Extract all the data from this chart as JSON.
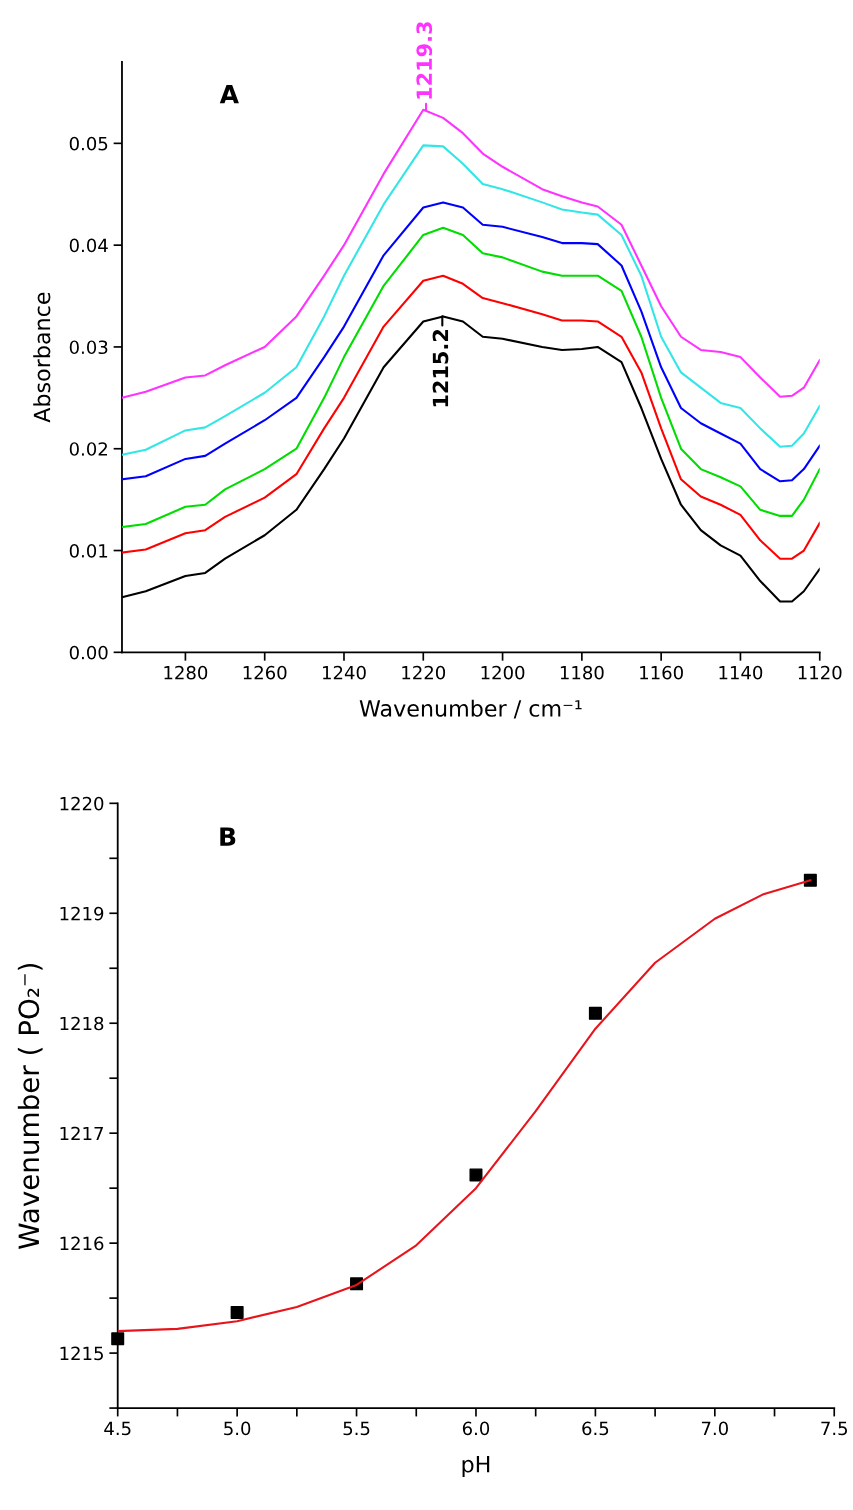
{
  "chart_data": [
    {
      "type": "line",
      "xlabel": "Wavenumber / cm⁻¹",
      "ylabel": "Absorbance",
      "x": [
        1296,
        1290,
        1280,
        1275,
        1270,
        1260,
        1252,
        1245,
        1240,
        1230,
        1220,
        1215,
        1210,
        1205,
        1200,
        1190,
        1185,
        1180,
        1176,
        1170,
        1165,
        1160,
        1155,
        1150,
        1145,
        1140,
        1135,
        1130,
        1127,
        1124,
        1120
      ],
      "series": [
        {
          "color": "#000000",
          "values": [
            0.0054,
            0.006,
            0.0075,
            0.0078,
            0.0092,
            0.0115,
            0.014,
            0.018,
            0.021,
            0.028,
            0.0325,
            0.033,
            0.0325,
            0.031,
            0.0308,
            0.03,
            0.0297,
            0.0298,
            0.03,
            0.0285,
            0.024,
            0.019,
            0.0145,
            0.012,
            0.0105,
            0.0095,
            0.007,
            0.005,
            0.005,
            0.006,
            0.0082
          ]
        },
        {
          "color": "#ff0000",
          "values": [
            0.0098,
            0.0101,
            0.0117,
            0.012,
            0.0133,
            0.0152,
            0.0175,
            0.022,
            0.025,
            0.032,
            0.0365,
            0.037,
            0.0362,
            0.0348,
            0.0343,
            0.0332,
            0.0326,
            0.0326,
            0.0325,
            0.031,
            0.0275,
            0.022,
            0.017,
            0.0153,
            0.0145,
            0.0135,
            0.011,
            0.0092,
            0.0092,
            0.01,
            0.0127
          ]
        },
        {
          "color": "#00dd00",
          "values": [
            0.0123,
            0.0126,
            0.0143,
            0.0145,
            0.016,
            0.018,
            0.02,
            0.025,
            0.029,
            0.036,
            0.041,
            0.0417,
            0.041,
            0.0392,
            0.0388,
            0.0374,
            0.037,
            0.037,
            0.037,
            0.0355,
            0.031,
            0.025,
            0.02,
            0.018,
            0.0172,
            0.0163,
            0.014,
            0.0134,
            0.0134,
            0.015,
            0.018
          ]
        },
        {
          "color": "#0000ff",
          "values": [
            0.017,
            0.0173,
            0.019,
            0.0193,
            0.0205,
            0.0228,
            0.025,
            0.029,
            0.032,
            0.039,
            0.0437,
            0.0442,
            0.0437,
            0.042,
            0.0418,
            0.0408,
            0.0402,
            0.0402,
            0.0401,
            0.038,
            0.0335,
            0.028,
            0.024,
            0.0225,
            0.0215,
            0.0205,
            0.018,
            0.0168,
            0.0169,
            0.018,
            0.0203
          ]
        },
        {
          "color": "#33e6e6",
          "values": [
            0.0194,
            0.0199,
            0.0218,
            0.0221,
            0.0232,
            0.0255,
            0.028,
            0.033,
            0.037,
            0.044,
            0.0498,
            0.0497,
            0.048,
            0.046,
            0.0455,
            0.0442,
            0.0435,
            0.0432,
            0.043,
            0.041,
            0.037,
            0.031,
            0.0275,
            0.026,
            0.0245,
            0.024,
            0.022,
            0.0202,
            0.0203,
            0.0215,
            0.0242
          ]
        },
        {
          "color": "#ff33ff",
          "values": [
            0.025,
            0.0256,
            0.027,
            0.0272,
            0.0282,
            0.03,
            0.033,
            0.037,
            0.04,
            0.047,
            0.0533,
            0.0525,
            0.051,
            0.049,
            0.0477,
            0.0455,
            0.0448,
            0.0442,
            0.0438,
            0.042,
            0.038,
            0.034,
            0.031,
            0.0297,
            0.0295,
            0.029,
            0.027,
            0.0251,
            0.0252,
            0.026,
            0.0287
          ]
        }
      ],
      "xlim": [
        1296,
        1120
      ],
      "xticks": [
        1280,
        1260,
        1240,
        1220,
        1200,
        1180,
        1160,
        1140,
        1120
      ],
      "ylim": [
        0,
        0.058
      ],
      "yticks": [
        {
          "value": 0,
          "label": "0.00"
        },
        {
          "value": 0.01,
          "label": "0.01"
        },
        {
          "value": 0.02,
          "label": "0.02"
        },
        {
          "value": 0.03,
          "label": "0.03"
        },
        {
          "value": 0.04,
          "label": "0.04"
        },
        {
          "value": 0.05,
          "label": "0.05"
        }
      ],
      "annotations": [
        "A",
        {
          "text": "1219.3",
          "x": 1219.3,
          "y": 0.0533
        },
        {
          "text": "1215.2",
          "x": 1215.2,
          "y": 0.033
        }
      ],
      "grid": false,
      "legend": false
    },
    {
      "type": "scatter",
      "xlabel": "pH",
      "ylabel": "Wavenumber ( PO₂⁻)",
      "series": [
        {
          "type": "scatter",
          "color": "#000000",
          "marker": "square",
          "x": [
            4.5,
            5.0,
            5.5,
            6.0,
            6.5,
            7.4
          ],
          "values": [
            1215.13,
            1215.37,
            1215.63,
            1216.62,
            1218.09,
            1219.3
          ]
        },
        {
          "type": "line",
          "color": "#e8141c",
          "marker": "none",
          "x": [
            4.5,
            4.75,
            5.0,
            5.25,
            5.5,
            5.75,
            6.0,
            6.25,
            6.5,
            6.75,
            7.0,
            7.2,
            7.4
          ],
          "values": [
            1215.2,
            1215.22,
            1215.29,
            1215.42,
            1215.62,
            1215.98,
            1216.5,
            1217.2,
            1217.95,
            1218.55,
            1218.95,
            1219.17,
            1219.3
          ]
        }
      ],
      "xlim": [
        4.5,
        7.5
      ],
      "xticks": [
        {
          "value": 4.5,
          "label": "4.5"
        },
        {
          "value": 4.75,
          "label": null
        },
        {
          "value": 5.0,
          "label": "5.0"
        },
        {
          "value": 5.25,
          "label": null
        },
        {
          "value": 5.5,
          "label": "5.5"
        },
        {
          "value": 5.75,
          "label": null
        },
        {
          "value": 6.0,
          "label": "6.0"
        },
        {
          "value": 6.25,
          "label": null
        },
        {
          "value": 6.5,
          "label": "6.5"
        },
        {
          "value": 6.75,
          "label": null
        },
        {
          "value": 7.0,
          "label": "7.0"
        },
        {
          "value": 7.25,
          "label": null
        },
        {
          "value": 7.5,
          "label": "7.5"
        }
      ],
      "ylim": [
        1214.5,
        1220
      ],
      "yticks": [
        {
          "value": 1214.5,
          "label": null
        },
        1215,
        {
          "value": 1215.5,
          "label": null
        },
        1216,
        {
          "value": 1216.5,
          "label": null
        },
        1217,
        {
          "value": 1217.5,
          "label": null
        },
        1218,
        {
          "value": 1218.5,
          "label": null
        },
        1219,
        {
          "value": 1219.5,
          "label": null
        },
        1220
      ],
      "annotations": [
        "B"
      ],
      "grid": false,
      "legend": false
    }
  ]
}
